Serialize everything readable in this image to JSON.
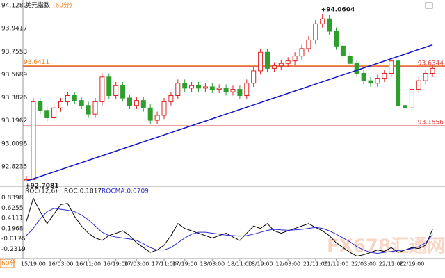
{
  "chart_data": [
    {
      "type": "candlestick",
      "title": "美元指数",
      "subtitle": "(60分)",
      "period": "60分",
      "watermark": "FX678汇通网",
      "categories": [
        null,
        "15/19:00",
        null,
        null,
        null,
        "16/03:00",
        null,
        null,
        null,
        "16/11:00",
        null,
        null,
        null,
        "16/19:00",
        null,
        null,
        "17/03:00",
        null,
        null,
        null,
        "17/11:00",
        null,
        null,
        "17/19:00",
        null,
        null,
        null,
        "18/03:00",
        null,
        null,
        null,
        "18/11:00",
        null,
        null,
        "18/19:00",
        null,
        null,
        null,
        "19/03:00",
        null,
        null,
        null,
        "21/11:00",
        null,
        null,
        "21/19:00",
        null,
        null,
        null,
        "22/03:00",
        null,
        null,
        null,
        "22/11:00",
        null,
        null,
        "22/19:00",
        null,
        null,
        null
      ],
      "open": [
        92.71,
        92.72,
        93.35,
        93.28,
        93.22,
        93.3,
        93.35,
        93.4,
        93.36,
        93.32,
        93.25,
        93.35,
        93.55,
        93.4,
        93.48,
        93.38,
        93.32,
        93.36,
        93.3,
        93.2,
        93.24,
        93.35,
        93.4,
        93.5,
        93.46,
        93.48,
        93.46,
        93.47,
        93.45,
        93.46,
        93.43,
        93.45,
        93.4,
        93.5,
        93.6,
        93.75,
        93.62,
        93.64,
        93.66,
        93.68,
        93.72,
        93.78,
        93.85,
        93.98,
        94.02,
        93.92,
        93.8,
        93.72,
        93.66,
        93.58,
        93.52,
        93.5,
        93.54,
        93.58,
        93.68,
        93.32,
        93.3,
        93.45,
        93.52,
        93.58
      ],
      "high": [
        92.75,
        93.38,
        93.38,
        93.31,
        93.33,
        93.38,
        93.43,
        93.43,
        93.39,
        93.35,
        93.38,
        93.58,
        93.58,
        93.51,
        93.51,
        93.41,
        93.39,
        93.39,
        93.33,
        93.27,
        93.38,
        93.43,
        93.53,
        93.53,
        93.51,
        93.51,
        93.5,
        93.5,
        93.49,
        93.49,
        93.48,
        93.48,
        93.53,
        93.63,
        93.78,
        93.78,
        93.67,
        93.69,
        93.71,
        93.75,
        93.81,
        93.88,
        94.01,
        94.0604,
        94.05,
        93.95,
        93.83,
        93.75,
        93.69,
        93.61,
        93.55,
        93.57,
        93.61,
        93.71,
        93.71,
        93.35,
        93.48,
        93.55,
        93.61,
        93.65
      ],
      "low": [
        92.7081,
        92.72,
        93.25,
        93.19,
        93.19,
        93.27,
        93.32,
        93.33,
        93.29,
        93.22,
        93.22,
        93.32,
        93.37,
        93.37,
        93.35,
        93.29,
        93.29,
        93.27,
        93.17,
        93.17,
        93.21,
        93.32,
        93.37,
        93.43,
        93.43,
        93.43,
        93.43,
        93.42,
        93.42,
        93.4,
        93.4,
        93.37,
        93.37,
        93.47,
        93.57,
        93.59,
        93.59,
        93.61,
        93.63,
        93.65,
        93.69,
        93.75,
        93.82,
        93.95,
        93.89,
        93.77,
        93.69,
        93.63,
        93.55,
        93.49,
        93.47,
        93.47,
        93.51,
        93.55,
        93.29,
        93.27,
        93.27,
        93.42,
        93.49,
        93.55
      ],
      "close": [
        92.72,
        93.35,
        93.28,
        93.22,
        93.3,
        93.35,
        93.4,
        93.36,
        93.32,
        93.25,
        93.35,
        93.55,
        93.4,
        93.48,
        93.38,
        93.32,
        93.36,
        93.3,
        93.2,
        93.24,
        93.35,
        93.4,
        93.5,
        93.46,
        93.48,
        93.46,
        93.47,
        93.45,
        93.46,
        93.43,
        93.45,
        93.4,
        93.5,
        93.6,
        93.75,
        93.62,
        93.64,
        93.66,
        93.68,
        93.72,
        93.78,
        93.85,
        93.98,
        94.02,
        93.92,
        93.8,
        93.72,
        93.66,
        93.58,
        93.52,
        93.5,
        93.54,
        93.58,
        93.68,
        93.32,
        93.3,
        93.45,
        93.52,
        93.58,
        93.62
      ],
      "up_color": "#e02020",
      "down_color": "#2e9e2e",
      "ylim": [
        92.7,
        94.128
      ],
      "yticks": [
        {
          "value": 94.128,
          "label": "94.1280"
        },
        93.9417,
        93.7553,
        93.5689,
        93.3826,
        93.1962,
        93.0098,
        92.8235
      ],
      "levels": [
        {
          "value": 93.6411,
          "side": "left",
          "color": "#f08020"
        },
        {
          "value": 93.6344,
          "side": "right",
          "color": "#e04040"
        },
        {
          "value": 93.1556,
          "side": "right",
          "color": "#e04040"
        }
      ],
      "annotations": [
        {
          "value": 94.0604,
          "label": "+94.0604"
        },
        {
          "value": 92.7081,
          "label": "+92.7081"
        }
      ],
      "trendline": {
        "start": 92.7081,
        "end": 93.81,
        "color": "#1010c8"
      }
    },
    {
      "type": "line",
      "title": "ROC(12,6)",
      "legend_labels": [
        "ROC:0.1817",
        "ROCMA:0.0709"
      ],
      "series": [
        {
          "color": "#000000",
          "values": [
            0.35,
            0.83,
            0.55,
            0.3,
            0.5,
            0.7,
            0.72,
            0.45,
            0.25,
            0.1,
            0.0,
            -0.05,
            0.05,
            0.1,
            0.15,
            0.05,
            -0.1,
            -0.2,
            -0.3,
            -0.25,
            -0.15,
            0.05,
            0.3,
            0.2,
            0.15,
            0.1,
            0.05,
            0.0,
            0.05,
            0.1,
            0.02,
            -0.05,
            0.1,
            0.25,
            0.2,
            0.3,
            0.15,
            0.1,
            0.15,
            0.2,
            0.25,
            0.3,
            0.22,
            0.15,
            0.05,
            -0.1,
            -0.2,
            -0.3,
            -0.38,
            -0.35,
            -0.3,
            -0.25,
            -0.28,
            -0.2,
            -0.3,
            -0.25,
            -0.2,
            -0.22,
            -0.15,
            0.1817
          ]
        },
        {
          "color": "#2a2ad0",
          "values": [
            0.05,
            0.2,
            0.4,
            0.55,
            0.62,
            0.6,
            0.58,
            0.55,
            0.48,
            0.38,
            0.25,
            0.12,
            0.05,
            0.02,
            0.0,
            -0.02,
            -0.05,
            -0.12,
            -0.2,
            -0.25,
            -0.25,
            -0.2,
            -0.1,
            0.0,
            0.08,
            0.12,
            0.12,
            0.1,
            0.08,
            0.06,
            0.05,
            0.04,
            0.05,
            0.08,
            0.12,
            0.16,
            0.18,
            0.17,
            0.16,
            0.17,
            0.18,
            0.2,
            0.22,
            0.2,
            0.15,
            0.08,
            0.0,
            -0.08,
            -0.18,
            -0.25,
            -0.3,
            -0.32,
            -0.3,
            -0.28,
            -0.26,
            -0.25,
            -0.22,
            -0.18,
            -0.1,
            0.0709
          ]
        }
      ],
      "ylim": [
        -0.4,
        0.95
      ],
      "yticks": [
        0.8398,
        0.6255,
        0.4111,
        0.1968,
        -0.0176,
        -0.2319
      ]
    }
  ]
}
